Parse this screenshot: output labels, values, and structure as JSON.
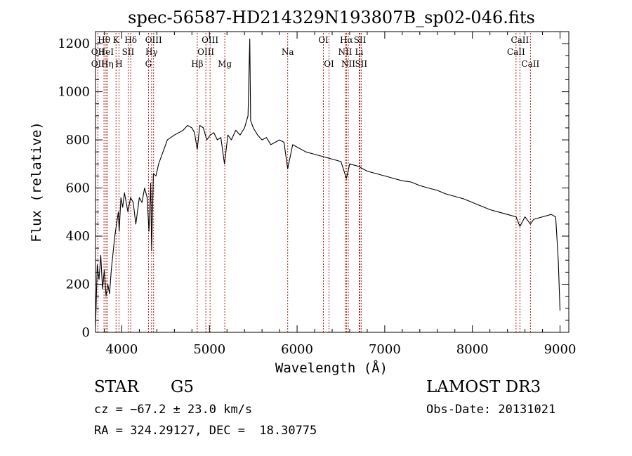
{
  "chart_data": {
    "type": "line",
    "title": "spec-56587-HD214329N193807B_sp02-046.fits",
    "xlabel": "Wavelength (Å)",
    "ylabel": "Flux (relative)",
    "xlim": [
      3700,
      9100
    ],
    "ylim": [
      0,
      1250
    ],
    "x_ticks": [
      4000,
      5000,
      6000,
      7000,
      8000,
      9000
    ],
    "y_ticks": [
      0,
      200,
      400,
      600,
      800,
      1000,
      1200
    ],
    "grid": false,
    "series": [
      {
        "line_color": "#000000",
        "x": [
          3700,
          3720,
          3740,
          3760,
          3780,
          3800,
          3820,
          3840,
          3860,
          3880,
          3900,
          3920,
          3940,
          3960,
          3970,
          3990,
          4010,
          4030,
          4050,
          4070,
          4100,
          4130,
          4160,
          4200,
          4230,
          4260,
          4290,
          4310,
          4330,
          4340,
          4360,
          4390,
          4420,
          4450,
          4480,
          4520,
          4560,
          4600,
          4650,
          4700,
          4750,
          4800,
          4830,
          4861,
          4890,
          4930,
          4970,
          5010,
          5050,
          5090,
          5130,
          5172,
          5210,
          5250,
          5300,
          5350,
          5400,
          5440,
          5460,
          5470,
          5500,
          5550,
          5600,
          5650,
          5700,
          5750,
          5800,
          5850,
          5893,
          5950,
          6000,
          6100,
          6200,
          6300,
          6400,
          6500,
          6563,
          6600,
          6700,
          6800,
          6900,
          7000,
          7100,
          7200,
          7300,
          7400,
          7500,
          7600,
          7700,
          7800,
          7900,
          8000,
          8100,
          8200,
          8300,
          8400,
          8498,
          8542,
          8600,
          8662,
          8700,
          8800,
          8900,
          8950,
          8980,
          9000
        ],
        "y": [
          20,
          280,
          220,
          320,
          180,
          260,
          150,
          200,
          160,
          260,
          330,
          400,
          450,
          500,
          420,
          560,
          520,
          580,
          540,
          500,
          560,
          540,
          450,
          560,
          540,
          600,
          560,
          420,
          620,
          340,
          660,
          650,
          700,
          730,
          760,
          800,
          810,
          820,
          830,
          840,
          860,
          850,
          830,
          760,
          860,
          850,
          800,
          820,
          830,
          800,
          810,
          700,
          820,
          800,
          840,
          820,
          850,
          900,
          1220,
          880,
          850,
          820,
          800,
          810,
          780,
          790,
          800,
          790,
          680,
          780,
          770,
          750,
          740,
          730,
          720,
          710,
          640,
          700,
          690,
          670,
          660,
          650,
          640,
          630,
          625,
          610,
          600,
          590,
          575,
          565,
          555,
          540,
          525,
          510,
          500,
          490,
          480,
          440,
          480,
          450,
          470,
          480,
          490,
          480,
          300,
          90
        ]
      }
    ],
    "lines": [
      {
        "label": "Hθ",
        "x": 3797,
        "row": 0
      },
      {
        "label": "OII",
        "x": 3727,
        "row": 1
      },
      {
        "label": "OII",
        "x": 3727,
        "row": 2
      },
      {
        "label": "HeI",
        "x": 3820,
        "row": 1
      },
      {
        "label": "Hη",
        "x": 3835,
        "row": 2
      },
      {
        "label": "K",
        "x": 3934,
        "row": 0
      },
      {
        "label": "SII",
        "x": 4072,
        "row": 1
      },
      {
        "label": "H",
        "x": 3968,
        "row": 2
      },
      {
        "label": "Hδ",
        "x": 4102,
        "row": 0
      },
      {
        "label": "OIII",
        "x": 4363,
        "row": 0
      },
      {
        "label": "Hγ",
        "x": 4340,
        "row": 1
      },
      {
        "label": "G",
        "x": 4304,
        "row": 2
      },
      {
        "label": "OIII",
        "x": 5007,
        "row": 0
      },
      {
        "label": "OIII",
        "x": 4959,
        "row": 1
      },
      {
        "label": "Hβ",
        "x": 4861,
        "row": 2
      },
      {
        "label": "Mg",
        "x": 5175,
        "row": 2
      },
      {
        "label": "Na",
        "x": 5893,
        "row": 1
      },
      {
        "label": "OI",
        "x": 6300,
        "row": 0
      },
      {
        "label": "OI",
        "x": 6364,
        "row": 2
      },
      {
        "label": "Hα",
        "x": 6563,
        "row": 0
      },
      {
        "label": "NII",
        "x": 6548,
        "row": 1
      },
      {
        "label": "NII",
        "x": 6584,
        "row": 2
      },
      {
        "label": "SII",
        "x": 6717,
        "row": 0
      },
      {
        "label": "Li",
        "x": 6708,
        "row": 1
      },
      {
        "label": "SII",
        "x": 6731,
        "row": 2
      },
      {
        "label": "CaII",
        "x": 8542,
        "row": 0
      },
      {
        "label": "CaII",
        "x": 8498,
        "row": 1
      },
      {
        "label": "CaII",
        "x": 8662,
        "row": 2
      }
    ]
  },
  "info": {
    "object_class": "STAR",
    "subclass": "G5",
    "survey": "LAMOST DR3",
    "cz": "cz = −67.2 ± 23.0 km/s",
    "obs_date": "Obs-Date: 20131021",
    "coords": "RA = 324.29127, DEC =  18.30775"
  }
}
